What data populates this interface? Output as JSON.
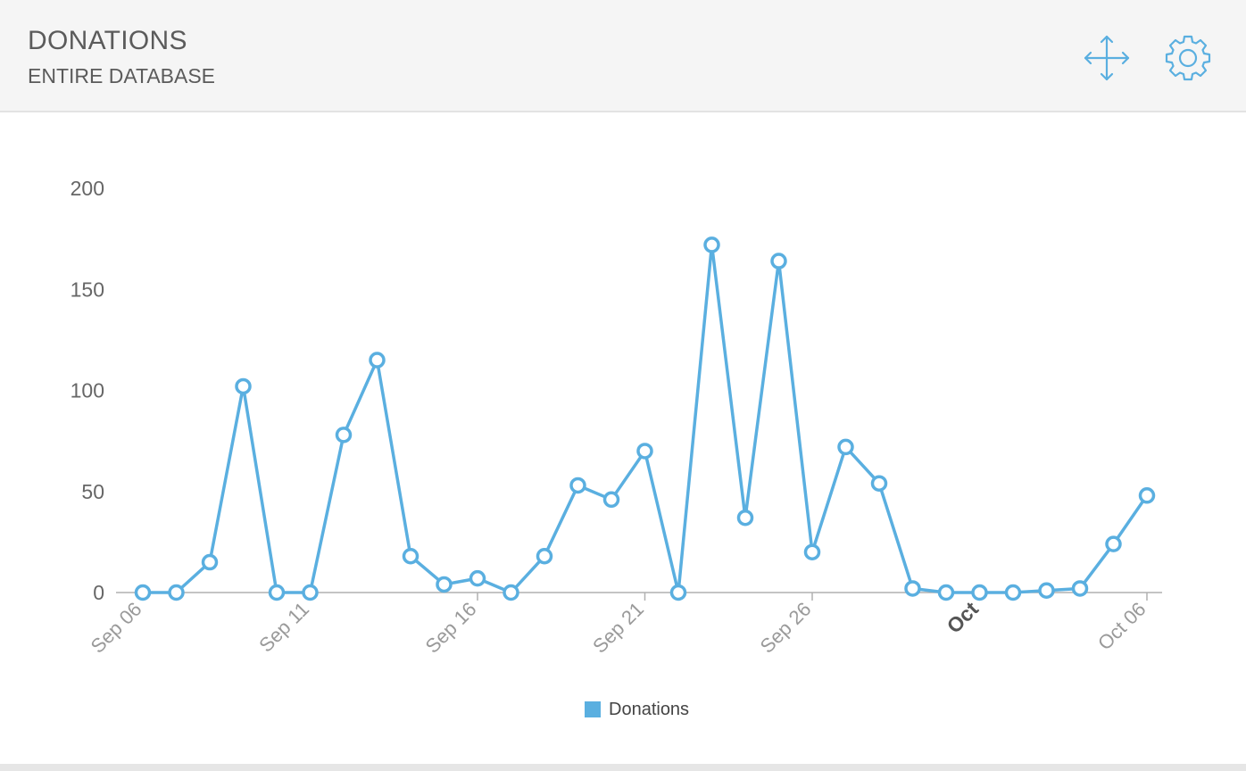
{
  "header": {
    "title": "DONATIONS",
    "subtitle": "ENTIRE DATABASE",
    "move_icon": "move-arrows-icon",
    "settings_icon": "gear-icon"
  },
  "colors": {
    "series": "#5aafe0",
    "axis_text": "#666666",
    "axis_line": "#b0b0b0",
    "header_bg": "#f5f5f5"
  },
  "chart_data": {
    "type": "line",
    "title": "",
    "xlabel": "",
    "ylabel": "",
    "ylim": [
      0,
      200
    ],
    "yticks": [
      0,
      50,
      100,
      150,
      200
    ],
    "grid": false,
    "legend_position": "bottom-center",
    "x_tick_labels": [
      {
        "date": "2014-09-06",
        "label": "Sep 06",
        "bold": false
      },
      {
        "date": "2014-09-11",
        "label": "Sep 11",
        "bold": false
      },
      {
        "date": "2014-09-16",
        "label": "Sep 16",
        "bold": false
      },
      {
        "date": "2014-09-21",
        "label": "Sep 21",
        "bold": false
      },
      {
        "date": "2014-09-26",
        "label": "Sep 26",
        "bold": false
      },
      {
        "date": "2014-10-01",
        "label": "Oct",
        "bold": true
      },
      {
        "date": "2014-10-06",
        "label": "Oct 06",
        "bold": false
      }
    ],
    "x": [
      "2014-09-06",
      "2014-09-07",
      "2014-09-08",
      "2014-09-09",
      "2014-09-10",
      "2014-09-11",
      "2014-09-12",
      "2014-09-13",
      "2014-09-14",
      "2014-09-15",
      "2014-09-16",
      "2014-09-17",
      "2014-09-18",
      "2014-09-19",
      "2014-09-20",
      "2014-09-21",
      "2014-09-22",
      "2014-09-23",
      "2014-09-24",
      "2014-09-25",
      "2014-09-26",
      "2014-09-27",
      "2014-09-28",
      "2014-09-29",
      "2014-09-30",
      "2014-10-01",
      "2014-10-02",
      "2014-10-03",
      "2014-10-04",
      "2014-10-05",
      "2014-10-06"
    ],
    "series": [
      {
        "name": "Donations",
        "color": "#5aafe0",
        "values": [
          0,
          0,
          15,
          102,
          0,
          0,
          78,
          115,
          18,
          4,
          7,
          0,
          18,
          53,
          46,
          70,
          0,
          172,
          37,
          164,
          20,
          72,
          54,
          2,
          0,
          0,
          0,
          1,
          2,
          24,
          48
        ]
      }
    ]
  }
}
